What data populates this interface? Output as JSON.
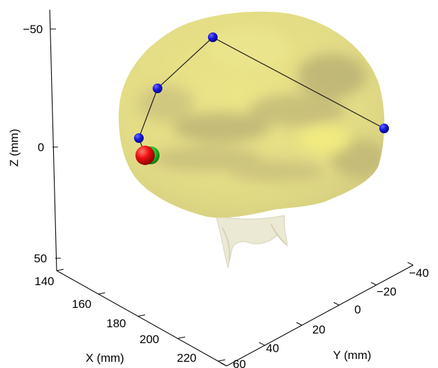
{
  "colors": {
    "surface": "#e6e088",
    "surface_shadow": "#b8ad72",
    "surface_highlight": "#f0ea80",
    "stem": "#e8e5cf",
    "electrode": "#1414e0",
    "connector": "#1a1a1a",
    "marker_primary": "#ee0c0c",
    "marker_secondary": "#25c525",
    "axis_line": "#000000"
  },
  "chart_data": {
    "type": "3d-scatter",
    "axes": {
      "x": {
        "label": "X (mm)",
        "ticks": [
          "140",
          "160",
          "180",
          "200",
          "220"
        ]
      },
      "y": {
        "label": "Y (mm)",
        "ticks": [
          "60",
          "40",
          "20",
          "0",
          "−20",
          "−40"
        ]
      },
      "z": {
        "label": "Z (mm)",
        "ticks": [
          "−50",
          "0",
          "50"
        ],
        "direction": "reversed"
      }
    },
    "electrodes": {
      "color": "blue",
      "connected": true,
      "count": 4
    },
    "marker": {
      "colors": [
        "red",
        "green"
      ]
    }
  }
}
